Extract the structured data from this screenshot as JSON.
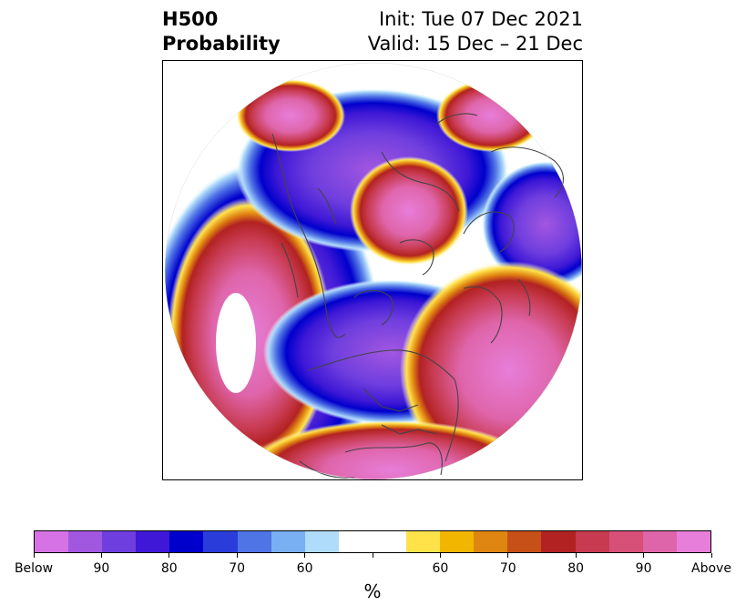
{
  "header": {
    "title_line1": "H500",
    "title_line2": "Probability",
    "init_text": "Init: Tue 07 Dec 2021",
    "valid_text": "Valid: 15 Dec – 21 Dec"
  },
  "map": {
    "projection": "north-polar-stereographic",
    "coastline_color": "#444444"
  },
  "colorbar": {
    "colors": [
      "#d672e6",
      "#a257e0",
      "#6f3ede",
      "#3e18d6",
      "#0000cc",
      "#2a3ddb",
      "#4f74e6",
      "#78b0f3",
      "#b0dcfb",
      "#ffffff",
      "#ffe24a",
      "#f2b600",
      "#df8511",
      "#c65018",
      "#b22222",
      "#c73a4f",
      "#d65078",
      "#df65aa",
      "#e77ed9"
    ],
    "tick_labels": [
      "Below",
      "90",
      "80",
      "70",
      "60",
      "",
      "60",
      "70",
      "80",
      "90",
      "Above"
    ],
    "unit_label": "%"
  }
}
